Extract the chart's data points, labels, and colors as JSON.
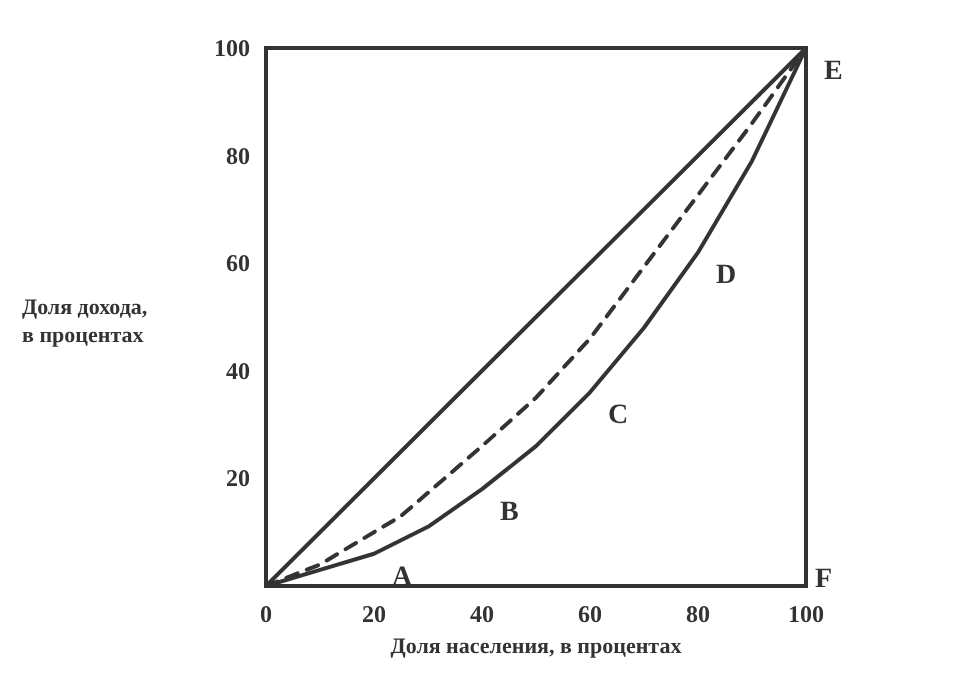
{
  "chart_data": {
    "type": "line",
    "xlabel": "Доля населения, в процентах",
    "ylabel": "Доля дохода,\nв процентах",
    "xlim": [
      0,
      100
    ],
    "ylim": [
      0,
      100
    ],
    "xticks": [
      0,
      20,
      40,
      60,
      80,
      100
    ],
    "yticks": [
      20,
      40,
      60,
      80,
      100
    ],
    "grid": false,
    "marker": "none",
    "series": [
      {
        "color": "#333333",
        "line_style": "solid",
        "x": [
          0,
          100
        ],
        "values": [
          0,
          100
        ]
      },
      {
        "color": "#333333",
        "line_style": "dashed",
        "x": [
          0,
          10,
          25,
          40,
          50,
          60,
          75,
          90,
          100
        ],
        "values": [
          0,
          4,
          13,
          26,
          35,
          46,
          66,
          86,
          100
        ]
      },
      {
        "color": "#333333",
        "line_style": "solid",
        "x": [
          0,
          10,
          20,
          30,
          40,
          50,
          60,
          70,
          80,
          90,
          100
        ],
        "values": [
          0,
          3,
          6,
          11,
          18,
          26,
          36,
          48,
          62,
          79,
          100
        ]
      }
    ],
    "annotations": [
      {
        "text": "A",
        "x": 20,
        "y": 6
      },
      {
        "text": "B",
        "x": 40,
        "y": 18
      },
      {
        "text": "C",
        "x": 60,
        "y": 36
      },
      {
        "text": "D",
        "x": 80,
        "y": 62
      },
      {
        "text": "E",
        "x": 100,
        "y": 100
      },
      "F"
    ]
  }
}
